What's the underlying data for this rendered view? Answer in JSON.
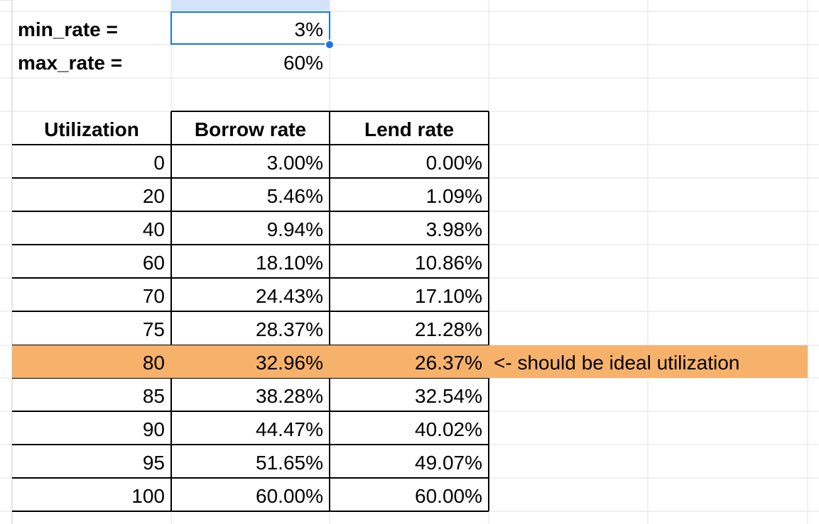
{
  "params": {
    "min_label": "min_rate =",
    "min_value": "3%",
    "max_label": "max_rate =",
    "max_value": "60%"
  },
  "table": {
    "headers": [
      "Utilization",
      "Borrow rate",
      "Lend rate"
    ],
    "rows": [
      [
        "0",
        "3.00%",
        "0.00%"
      ],
      [
        "20",
        "5.46%",
        "1.09%"
      ],
      [
        "40",
        "9.94%",
        "3.98%"
      ],
      [
        "60",
        "18.10%",
        "10.86%"
      ],
      [
        "70",
        "24.43%",
        "17.10%"
      ],
      [
        "75",
        "28.37%",
        "21.28%"
      ],
      [
        "80",
        "32.96%",
        "26.37%"
      ],
      [
        "85",
        "38.28%",
        "32.54%"
      ],
      [
        "90",
        "44.47%",
        "40.02%"
      ],
      [
        "95",
        "51.65%",
        "49.07%"
      ],
      [
        "100",
        "60.00%",
        "60.00%"
      ]
    ],
    "highlight_row": 6,
    "note": "<- should be ideal utilization"
  },
  "colors": {
    "highlight": "#f6b26b",
    "gridline": "#e2e2e2",
    "border": "#000000",
    "selection": "#1a73e8"
  }
}
